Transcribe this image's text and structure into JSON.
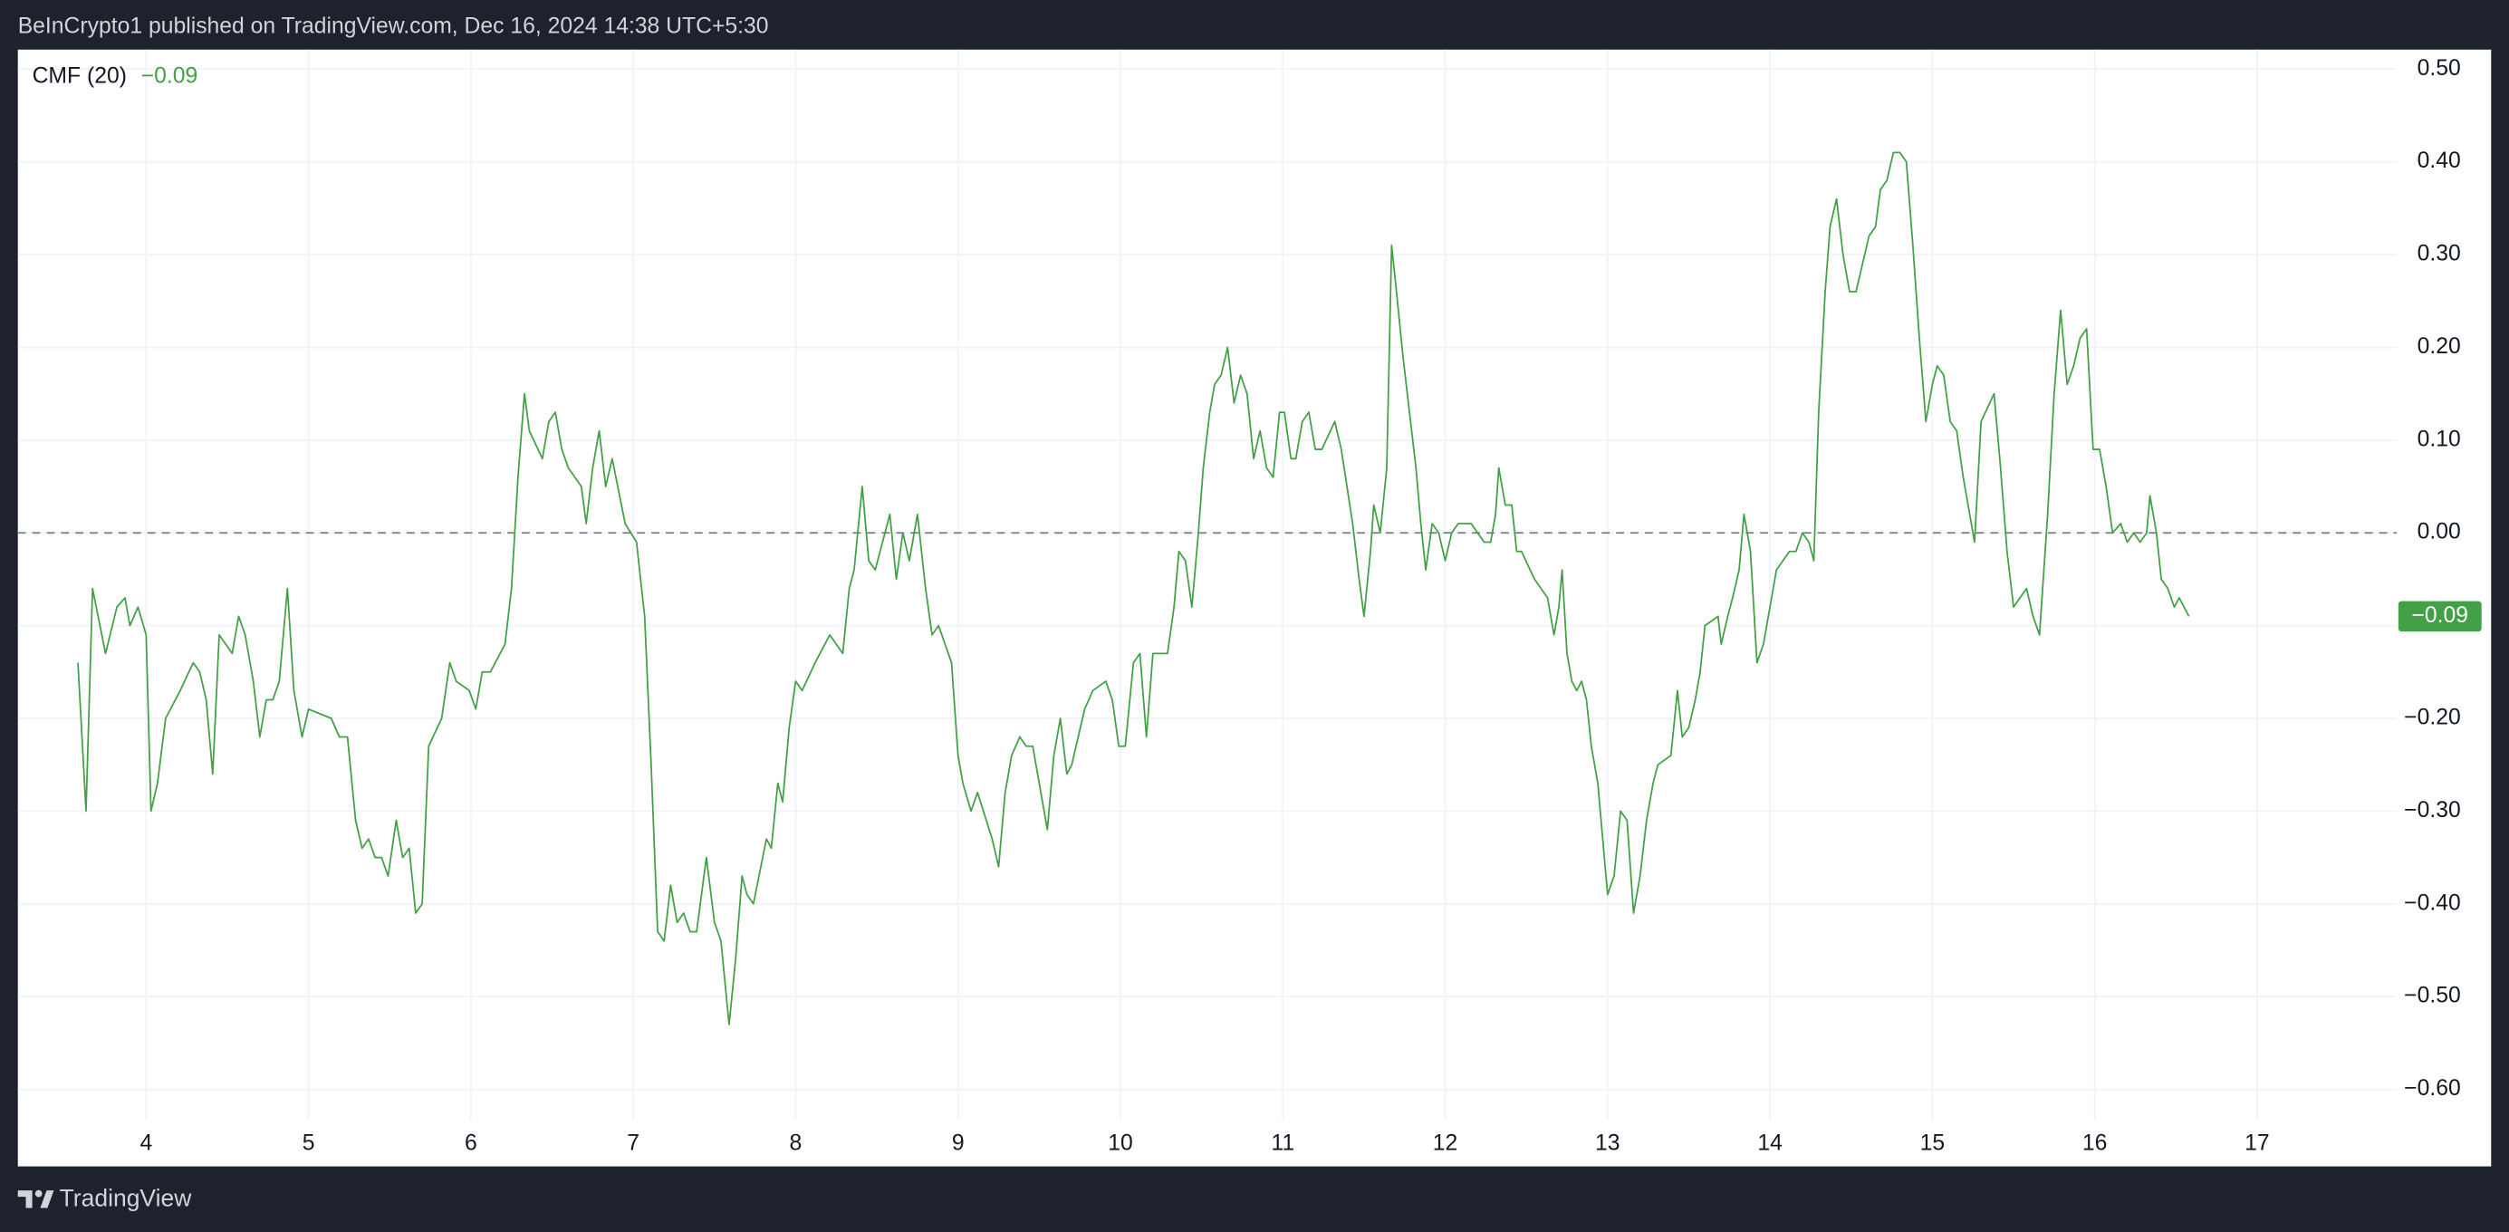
{
  "header": {
    "text": "BeInCrypto1 published on TradingView.com, Dec 16, 2024 14:38 UTC+5:30"
  },
  "footer": {
    "brand": "TradingView"
  },
  "chart_data": {
    "type": "line",
    "grid": true,
    "zero_line": true,
    "xlim": [
      3.21,
      17.86
    ],
    "ylim": [
      -0.633,
      0.521
    ],
    "xticks": [
      4,
      5,
      6,
      7,
      8,
      9,
      10,
      11,
      12,
      13,
      14,
      15,
      16,
      17
    ],
    "yticks": [
      {
        "value": 0.5,
        "label": "0.50"
      },
      {
        "value": 0.4,
        "label": "0.40"
      },
      {
        "value": 0.3,
        "label": "0.30"
      },
      {
        "value": 0.2,
        "label": "0.20"
      },
      {
        "value": 0.1,
        "label": "0.10"
      },
      {
        "value": 0,
        "label": "0.00"
      },
      {
        "value": -0.1,
        "label": "−0.10"
      },
      {
        "value": -0.2,
        "label": "−0.20"
      },
      {
        "value": -0.3,
        "label": "−0.30"
      },
      {
        "value": -0.4,
        "label": "−0.40"
      },
      {
        "value": -0.5,
        "label": "−0.50"
      },
      {
        "value": -0.6,
        "label": "−0.60"
      }
    ],
    "last_value": {
      "value": -0.09,
      "label": "−0.09"
    },
    "x": [
      3.58,
      3.63,
      3.67,
      3.75,
      3.82,
      3.87,
      3.9,
      3.95,
      4.0,
      4.03,
      4.07,
      4.12,
      4.21,
      4.29,
      4.33,
      4.37,
      4.41,
      4.45,
      4.53,
      4.57,
      4.61,
      4.66,
      4.7,
      4.74,
      4.78,
      4.82,
      4.87,
      4.91,
      4.96,
      5.0,
      5.14,
      5.19,
      5.24,
      5.29,
      5.33,
      5.37,
      5.41,
      5.45,
      5.49,
      5.54,
      5.58,
      5.62,
      5.66,
      5.7,
      5.74,
      5.82,
      5.87,
      5.91,
      5.99,
      6.03,
      6.07,
      6.12,
      6.21,
      6.25,
      6.29,
      6.33,
      6.36,
      6.44,
      6.48,
      6.52,
      6.56,
      6.6,
      6.68,
      6.71,
      6.75,
      6.79,
      6.83,
      6.87,
      6.95,
      7.02,
      7.07,
      7.11,
      7.15,
      7.19,
      7.23,
      7.27,
      7.31,
      7.35,
      7.39,
      7.45,
      7.5,
      7.54,
      7.59,
      7.63,
      7.67,
      7.7,
      7.74,
      7.82,
      7.85,
      7.89,
      7.92,
      7.96,
      8.0,
      8.04,
      8.12,
      8.21,
      8.29,
      8.33,
      8.36,
      8.41,
      8.45,
      8.49,
      8.58,
      8.62,
      8.66,
      8.7,
      8.75,
      8.8,
      8.84,
      8.88,
      8.96,
      9.0,
      9.03,
      9.08,
      9.12,
      9.21,
      9.25,
      9.29,
      9.33,
      9.38,
      9.42,
      9.46,
      9.51,
      9.55,
      9.59,
      9.63,
      9.67,
      9.7,
      9.78,
      9.83,
      9.91,
      9.95,
      9.99,
      10.03,
      10.08,
      10.12,
      10.16,
      10.2,
      10.29,
      10.33,
      10.36,
      10.4,
      10.44,
      10.48,
      10.51,
      10.55,
      10.58,
      10.62,
      10.66,
      10.7,
      10.74,
      10.78,
      10.82,
      10.86,
      10.9,
      10.94,
      10.98,
      11.01,
      11.05,
      11.08,
      11.12,
      11.16,
      11.2,
      11.24,
      11.32,
      11.36,
      11.43,
      11.47,
      11.5,
      11.54,
      11.56,
      11.6,
      11.64,
      11.67,
      11.7,
      11.74,
      11.78,
      11.82,
      11.85,
      11.88,
      11.92,
      11.96,
      12.0,
      12.04,
      12.08,
      12.16,
      12.24,
      12.28,
      12.31,
      12.33,
      12.37,
      12.41,
      12.44,
      12.47,
      12.55,
      12.63,
      12.67,
      12.7,
      12.72,
      12.75,
      12.78,
      12.81,
      12.84,
      12.87,
      12.9,
      12.94,
      12.97,
      13.0,
      13.04,
      13.08,
      13.12,
      13.16,
      13.2,
      13.24,
      13.28,
      13.31,
      13.39,
      13.43,
      13.46,
      13.5,
      13.54,
      13.57,
      13.6,
      13.68,
      13.7,
      13.74,
      13.77,
      13.81,
      13.84,
      13.88,
      13.92,
      13.96,
      14.0,
      14.04,
      14.12,
      14.16,
      14.2,
      14.24,
      14.27,
      14.3,
      14.34,
      14.37,
      14.41,
      14.45,
      14.49,
      14.53,
      14.57,
      14.61,
      14.65,
      14.68,
      14.72,
      14.76,
      14.8,
      14.84,
      14.88,
      14.92,
      14.96,
      15.0,
      15.03,
      15.07,
      15.11,
      15.15,
      15.19,
      15.23,
      15.26,
      15.3,
      15.38,
      15.42,
      15.46,
      15.5,
      15.54,
      15.58,
      15.62,
      15.66,
      15.71,
      15.75,
      15.79,
      15.83,
      15.87,
      15.91,
      15.95,
      15.99,
      16.03,
      16.07,
      16.11,
      16.16,
      16.2,
      16.24,
      16.28,
      16.32,
      16.34,
      16.38,
      16.41,
      16.45,
      16.49,
      16.52,
      16.58
    ],
    "series": [
      {
        "name": "CMF (20)",
        "color": "#43a047",
        "values": [
          -0.14,
          -0.3,
          -0.06,
          -0.13,
          -0.08,
          -0.07,
          -0.1,
          -0.08,
          -0.11,
          -0.3,
          -0.27,
          -0.2,
          -0.17,
          -0.14,
          -0.15,
          -0.18,
          -0.26,
          -0.11,
          -0.13,
          -0.09,
          -0.11,
          -0.16,
          -0.22,
          -0.18,
          -0.18,
          -0.16,
          -0.06,
          -0.17,
          -0.22,
          -0.19,
          -0.2,
          -0.22,
          -0.22,
          -0.31,
          -0.34,
          -0.33,
          -0.35,
          -0.35,
          -0.37,
          -0.31,
          -0.35,
          -0.34,
          -0.41,
          -0.4,
          -0.23,
          -0.2,
          -0.14,
          -0.16,
          -0.17,
          -0.19,
          -0.15,
          -0.15,
          -0.12,
          -0.06,
          0.06,
          0.15,
          0.11,
          0.08,
          0.12,
          0.13,
          0.09,
          0.07,
          0.05,
          0.01,
          0.07,
          0.11,
          0.05,
          0.08,
          0.01,
          -0.01,
          -0.09,
          -0.25,
          -0.43,
          -0.44,
          -0.38,
          -0.42,
          -0.41,
          -0.43,
          -0.43,
          -0.35,
          -0.42,
          -0.44,
          -0.53,
          -0.46,
          -0.37,
          -0.39,
          -0.4,
          -0.33,
          -0.34,
          -0.27,
          -0.29,
          -0.21,
          -0.16,
          -0.17,
          -0.14,
          -0.11,
          -0.13,
          -0.06,
          -0.04,
          0.05,
          -0.03,
          -0.04,
          0.02,
          -0.05,
          0.0,
          -0.03,
          0.02,
          -0.06,
          -0.11,
          -0.1,
          -0.14,
          -0.24,
          -0.27,
          -0.3,
          -0.28,
          -0.33,
          -0.36,
          -0.28,
          -0.24,
          -0.22,
          -0.23,
          -0.23,
          -0.28,
          -0.32,
          -0.24,
          -0.2,
          -0.26,
          -0.25,
          -0.19,
          -0.17,
          -0.16,
          -0.18,
          -0.23,
          -0.23,
          -0.14,
          -0.13,
          -0.22,
          -0.13,
          -0.13,
          -0.08,
          -0.02,
          -0.03,
          -0.08,
          0.0,
          0.07,
          0.13,
          0.16,
          0.17,
          0.2,
          0.14,
          0.17,
          0.15,
          0.08,
          0.11,
          0.07,
          0.06,
          0.13,
          0.13,
          0.08,
          0.08,
          0.12,
          0.13,
          0.09,
          0.09,
          0.12,
          0.09,
          0.01,
          -0.05,
          -0.09,
          -0.02,
          0.03,
          0.0,
          0.07,
          0.31,
          0.26,
          0.19,
          0.13,
          0.07,
          0.01,
          -0.04,
          0.01,
          0.0,
          -0.03,
          0.0,
          0.01,
          0.01,
          -0.01,
          -0.01,
          0.02,
          0.07,
          0.03,
          0.03,
          -0.02,
          -0.02,
          -0.05,
          -0.07,
          -0.11,
          -0.08,
          -0.04,
          -0.13,
          -0.16,
          -0.17,
          -0.16,
          -0.18,
          -0.23,
          -0.27,
          -0.33,
          -0.39,
          -0.37,
          -0.3,
          -0.31,
          -0.41,
          -0.37,
          -0.31,
          -0.27,
          -0.25,
          -0.24,
          -0.17,
          -0.22,
          -0.21,
          -0.18,
          -0.15,
          -0.1,
          -0.09,
          -0.12,
          -0.09,
          -0.07,
          -0.04,
          0.02,
          -0.02,
          -0.14,
          -0.12,
          -0.08,
          -0.04,
          -0.02,
          -0.02,
          0.0,
          -0.01,
          -0.03,
          0.13,
          0.26,
          0.33,
          0.36,
          0.3,
          0.26,
          0.26,
          0.29,
          0.32,
          0.33,
          0.37,
          0.38,
          0.41,
          0.41,
          0.4,
          0.31,
          0.21,
          0.12,
          0.16,
          0.18,
          0.17,
          0.12,
          0.11,
          0.06,
          0.02,
          -0.01,
          0.12,
          0.15,
          0.07,
          -0.02,
          -0.08,
          -0.07,
          -0.06,
          -0.09,
          -0.11,
          0.02,
          0.15,
          0.24,
          0.16,
          0.18,
          0.21,
          0.22,
          0.09,
          0.09,
          0.05,
          0.0,
          0.01,
          -0.01,
          0.0,
          -0.01,
          0.0,
          0.04,
          0.0,
          -0.05,
          -0.06,
          -0.08,
          -0.07,
          -0.09
        ]
      }
    ]
  }
}
